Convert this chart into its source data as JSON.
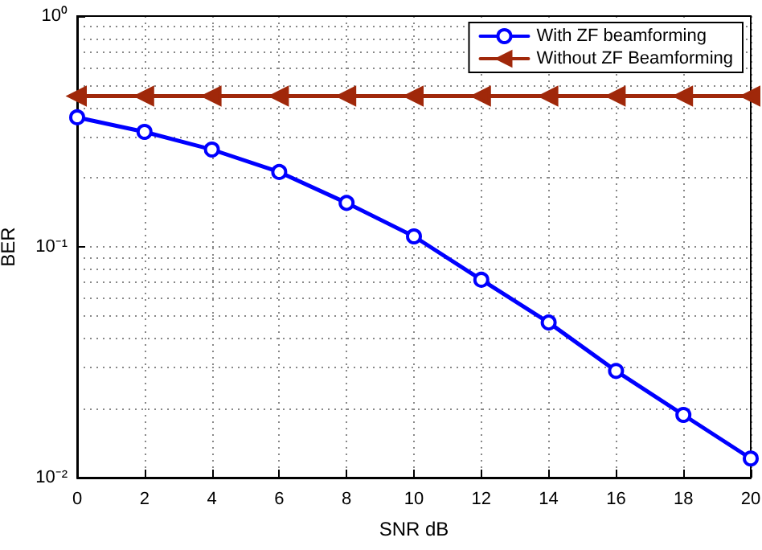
{
  "chart_data": {
    "type": "line",
    "xlabel": "SNR dB",
    "ylabel": "BER",
    "log": "y",
    "grid": true,
    "legend": "top right",
    "x": [
      0,
      2,
      4,
      6,
      8,
      10,
      12,
      14,
      16,
      18,
      20
    ],
    "xlim": [
      0,
      20
    ],
    "xticks": [
      0,
      2,
      4,
      6,
      8,
      10,
      12,
      14,
      16,
      18,
      20
    ],
    "ylim": [
      0.01,
      1
    ],
    "yticks": [
      {
        "value": 0.01,
        "label": "10⁻²"
      },
      {
        "value": 0.1,
        "label": "10⁻¹"
      },
      {
        "value": 1,
        "label": "10⁰"
      }
    ],
    "line_style": "solid",
    "series": [
      {
        "name": "With ZF beamforming",
        "color": "#0000ff",
        "marker": "circle",
        "values": [
          0.364,
          0.315,
          0.264,
          0.211,
          0.155,
          0.111,
          0.072,
          0.047,
          0.029,
          0.0187,
          0.0121
        ]
      },
      {
        "name": "Without ZF Beamforming",
        "color": "#a0280a",
        "marker": "triangle",
        "values": [
          0.45,
          0.45,
          0.45,
          0.45,
          0.45,
          0.45,
          0.45,
          0.45,
          0.45,
          0.45,
          0.45
        ]
      }
    ]
  }
}
